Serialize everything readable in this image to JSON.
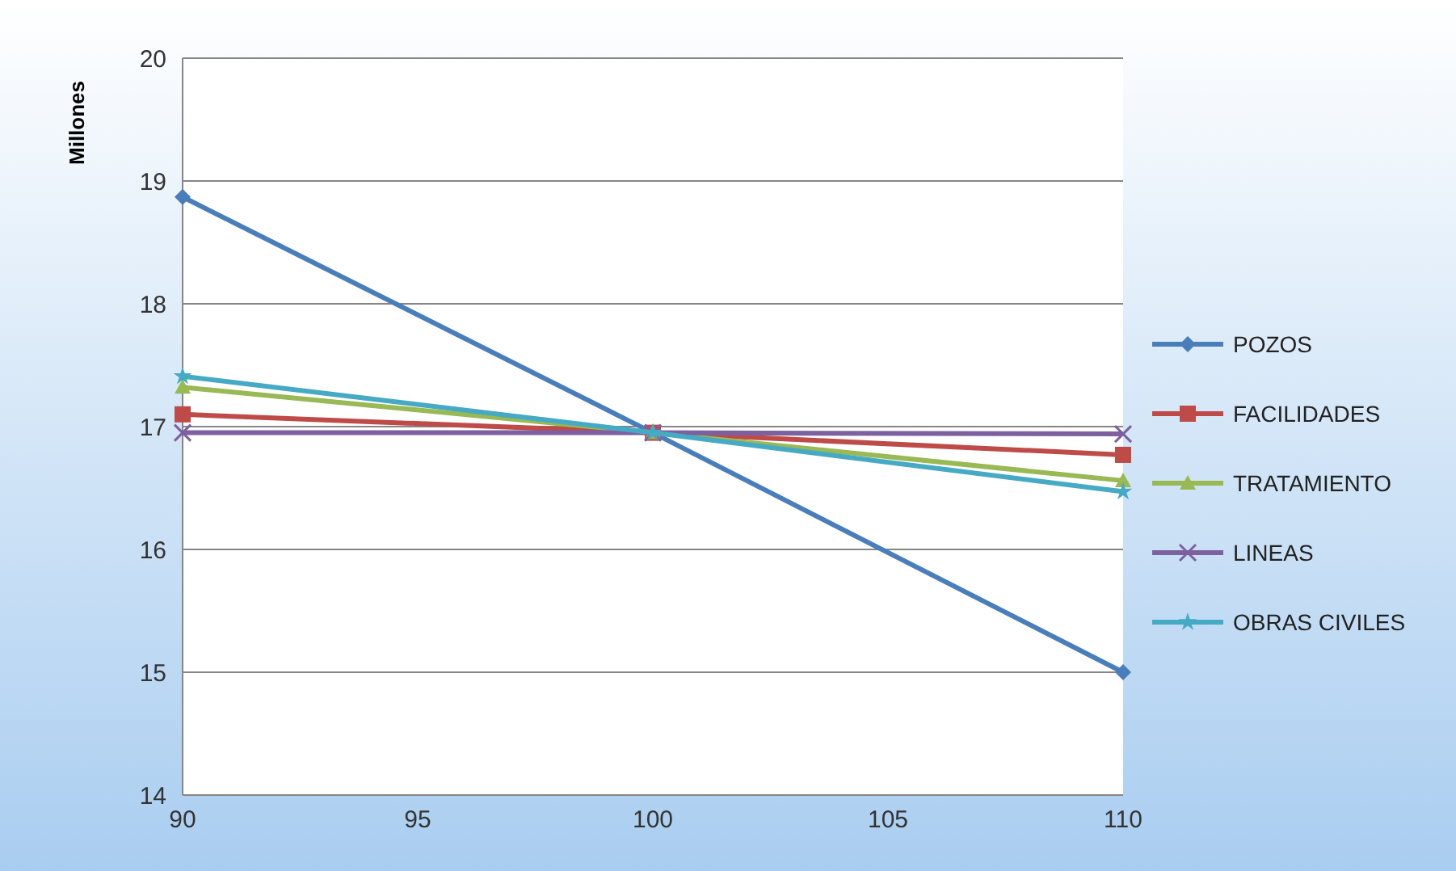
{
  "chart_data": {
    "type": "line",
    "ylabel": "Millones",
    "x": [
      90,
      100,
      110
    ],
    "xlim": [
      90,
      110
    ],
    "xticks": [
      90,
      95,
      100,
      105,
      110
    ],
    "ylim": [
      14,
      20
    ],
    "yticks": [
      14,
      15,
      16,
      17,
      18,
      19,
      20
    ],
    "grid": "y",
    "legend": "right",
    "series": [
      {
        "name": "POZOS",
        "color": "#4a7ebb",
        "marker": "diamond",
        "values": [
          18.87,
          16.95,
          15.0
        ]
      },
      {
        "name": "FACILIDADES",
        "color": "#be4b48",
        "marker": "square",
        "values": [
          17.1,
          16.95,
          16.77
        ]
      },
      {
        "name": "TRATAMIENTO",
        "color": "#98b954",
        "marker": "triangle",
        "values": [
          17.32,
          16.95,
          16.56
        ]
      },
      {
        "name": "LINEAS",
        "color": "#7d60a0",
        "marker": "cross",
        "values": [
          16.95,
          16.95,
          16.94
        ]
      },
      {
        "name": "OBRAS CIVILES",
        "color": "#46aac5",
        "marker": "star",
        "values": [
          17.41,
          16.95,
          16.47
        ]
      }
    ]
  }
}
